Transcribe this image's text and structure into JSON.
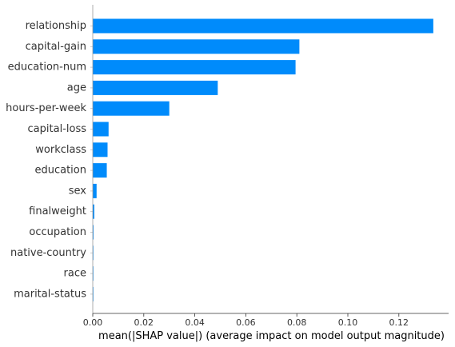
{
  "chart_data": {
    "type": "bar",
    "orientation": "horizontal",
    "categories": [
      "relationship",
      "capital-gain",
      "education-num",
      "age",
      "hours-per-week",
      "capital-loss",
      "workclass",
      "education",
      "sex",
      "finalweight",
      "occupation",
      "native-country",
      "race",
      "marital-status"
    ],
    "values": [
      0.1335,
      0.081,
      0.0795,
      0.049,
      0.03,
      0.0062,
      0.0058,
      0.0055,
      0.0015,
      0.0006,
      0.0003,
      0.0001,
      0.0001,
      0.0001
    ],
    "title": "",
    "xlabel": "mean(|SHAP value|) (average impact on model output magnitude)",
    "ylabel": "",
    "xlim": [
      0,
      0.1395
    ],
    "xticks": [
      0,
      0.02,
      0.04,
      0.06,
      0.08,
      0.1,
      0.12
    ],
    "xtick_labels": [
      "0.00",
      "0.02",
      "0.04",
      "0.06",
      "0.08",
      "0.10",
      "0.12"
    ],
    "bar_color": "#008bfb",
    "grid": false,
    "legend": "none"
  }
}
